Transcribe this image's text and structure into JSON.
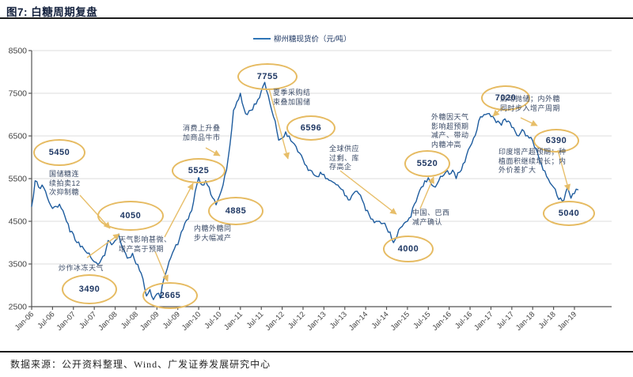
{
  "page": {
    "title": "图7: 白糖周期复盘",
    "footer": "数据来源：公开资料整理、Wind、广发证券发展研究中心"
  },
  "chart_data": {
    "type": "line",
    "title": "图7: 白糖周期复盘",
    "legend_text": "柳州糖现货价（元/吨）",
    "legend_position": "top-center",
    "xlabel": "",
    "ylabel": "",
    "ylim": [
      2500,
      8500
    ],
    "yticks": [
      8500,
      7500,
      6500,
      5500,
      4500,
      3500,
      2500
    ],
    "grid": "horizontal-light",
    "xticks": [
      "Jan-06",
      "Jul-06",
      "Jan-07",
      "Jul-07",
      "Jan-08",
      "Jul-08",
      "Jan-09",
      "Jul-09",
      "Jan-10",
      "Jul-10",
      "Jan-11",
      "Jul-11",
      "Jan-12",
      "Jul-12",
      "Jan-13",
      "Jul-13",
      "Jan-14",
      "Jul-14",
      "Jan-15",
      "Jul-15",
      "Jan-16",
      "Jul-16",
      "Jan-17",
      "Jul-17",
      "Jan-18",
      "Jul-18",
      "Jan-19"
    ],
    "line_color": "#1e5c9e",
    "annotation_color": "#e6bb62",
    "series": [
      {
        "name": "柳州糖现货价（元/吨）",
        "x_start": "2006-01",
        "x_freq": "monthly",
        "values": [
          4850,
          5450,
          5300,
          5350,
          5200,
          4950,
          4800,
          4850,
          4900,
          4750,
          4500,
          4250,
          4200,
          4000,
          3900,
          3850,
          3750,
          3650,
          3550,
          3490,
          3600,
          3700,
          4050,
          3950,
          4050,
          4200,
          3900,
          3750,
          3650,
          3750,
          3500,
          3350,
          3150,
          2750,
          2900,
          2665,
          2800,
          2700,
          3150,
          3400,
          3650,
          3850,
          3950,
          4250,
          4450,
          4550,
          4750,
          5200,
          5525,
          5350,
          5450,
          5300,
          5050,
          4885,
          5100,
          5350,
          5700,
          6300,
          7100,
          7300,
          7500,
          7150,
          7000,
          7100,
          7250,
          7350,
          7550,
          7755,
          7450,
          7100,
          6850,
          6400,
          6450,
          6596,
          6500,
          6350,
          6250,
          6100,
          5950,
          5800,
          5700,
          5600,
          5550,
          5650,
          5600,
          5500,
          5450,
          5400,
          5350,
          5250,
          5100,
          5000,
          5100,
          5200,
          5150,
          5000,
          4750,
          4650,
          4550,
          4500,
          4500,
          4450,
          4350,
          4250,
          4000,
          4150,
          4350,
          4450,
          4500,
          4600,
          4900,
          5100,
          5300,
          5450,
          5520,
          5350,
          5300,
          5450,
          5550,
          5650,
          5600,
          5700,
          5500,
          5650,
          5850,
          6050,
          6250,
          6450,
          6650,
          6950,
          7000,
          7020,
          6950,
          6900,
          6850,
          6750,
          6900,
          6850,
          6700,
          6600,
          6500,
          6650,
          6500,
          6450,
          6390,
          6200,
          5900,
          5700,
          5550,
          5400,
          5300,
          5100,
          5050,
          5000,
          5300,
          5040,
          5150,
          5240
        ]
      }
    ],
    "callouts": [
      "5450",
      "4050",
      "3490",
      "2665",
      "5525",
      "4885",
      "7755",
      "6596",
      "5520",
      "4000",
      "7020",
      "6390",
      "5040"
    ],
    "notes": [
      "国储糖连\n续拍卖12\n次抑制糖",
      "炒作冰冻天气",
      "天气影响甚微、\n增产高于预期",
      "消费上升叠\n加商品牛市",
      "内糖外糖同\n步大幅减产",
      "夏季采购结\n束叠加国储",
      "全球供应\n过剩、库\n存高企",
      "中国、巴西\n减产确认",
      "外糖因天气\n影响超预期\n减产、带动\n内糖冲高",
      "启动抛储；内外糖\n同时步入增产周期",
      "印度增产超预期；种\n植面积继续增长；内\n外价差扩大"
    ]
  }
}
